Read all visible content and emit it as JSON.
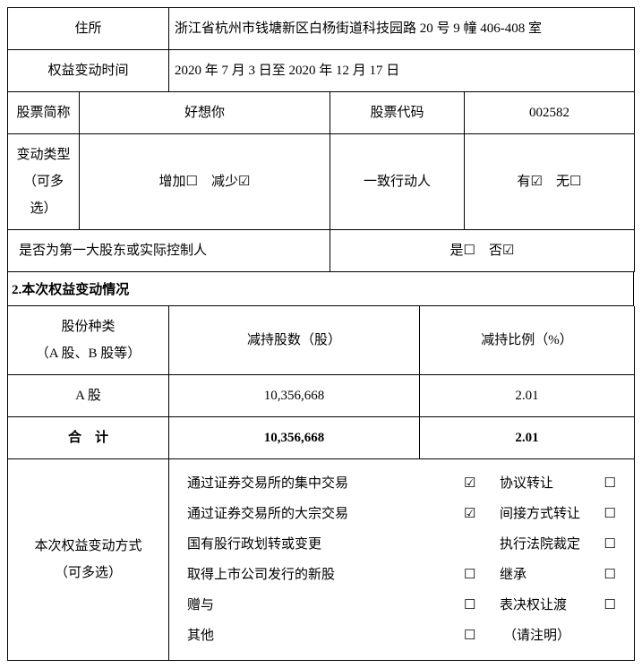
{
  "rows": {
    "address": {
      "label": "住所",
      "value": "浙江省杭州市钱塘新区白杨街道科技园路 20 号 9 幢 406-408 室"
    },
    "time": {
      "label": "权益变动时间",
      "value": "2020 年 7 月 3 日至 2020 年 12 月 17 日"
    },
    "stock": {
      "name_label": "股票简称",
      "name_value": "好想你",
      "code_label": "股票代码",
      "code_value": "002582"
    },
    "change_type": {
      "label1": "变动类型",
      "label2": "（可多选）",
      "increase": "增加☐",
      "decrease": "减少☑",
      "concert_label": "一致行动人",
      "yes": "有☑",
      "no": "无☐"
    },
    "first_shareholder": {
      "label": "是否为第一大股东或实际控制人",
      "yes": "是☐",
      "no": "否☑"
    }
  },
  "section2_title": "2.本次权益变动情况",
  "headers": {
    "share_type1": "股份种类",
    "share_type2": "（A 股、B 股等）",
    "reduce_shares": "减持股数（股）",
    "reduce_ratio": "减持比例（%）"
  },
  "data_rows": [
    {
      "type": "A 股",
      "shares": "10,356,668",
      "ratio": "2.01",
      "bold": false
    },
    {
      "type": "合　计",
      "shares": "10,356,668",
      "ratio": "2.01",
      "bold": true
    }
  ],
  "method": {
    "label1": "本次权益变动方式",
    "label2": "（可多选）",
    "items": [
      {
        "l": "通过证券交易所的集中交易",
        "c1": "☑",
        "r": "协议转让",
        "c2": "☐"
      },
      {
        "l": "通过证券交易所的大宗交易",
        "c1": "☑",
        "r": "间接方式转让",
        "c2": "☐"
      },
      {
        "l": "国有股行政划转或变更",
        "c1": "",
        "r": "执行法院裁定",
        "c2": "☐"
      },
      {
        "l": "取得上市公司发行的新股",
        "c1": "☐",
        "r": "继承",
        "c2": "☐"
      },
      {
        "l": "赠与",
        "c1": "☐",
        "r": "表决权让渡",
        "c2": "☐"
      },
      {
        "l": "其他",
        "c1": "☐",
        "r": "（请注明）",
        "c2": ""
      }
    ]
  }
}
